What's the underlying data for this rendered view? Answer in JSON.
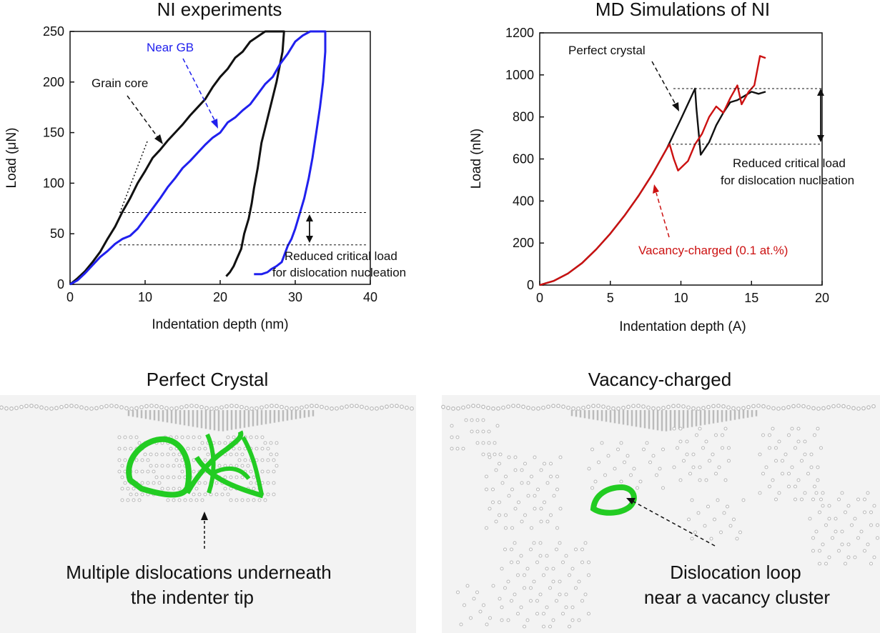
{
  "chart_data": [
    {
      "type": "line",
      "title": "NI experiments",
      "xlabel": "Indentation  depth  (nm)",
      "ylabel": "Load  (μN)",
      "xlim": [
        0,
        40
      ],
      "ylim": [
        0,
        250
      ],
      "xticks": [
        0,
        10,
        20,
        30,
        40
      ],
      "yticks": [
        0,
        50,
        100,
        150,
        200,
        250
      ],
      "series": [
        {
          "name": "Grain core",
          "color": "#111111",
          "x": [
            0,
            1,
            2,
            3,
            4,
            5,
            6,
            7,
            8,
            9,
            10,
            11,
            12,
            13,
            14,
            15,
            16,
            17,
            18,
            19,
            20,
            21,
            22,
            23,
            24,
            25,
            26,
            27,
            28,
            28.5,
            28.3,
            27.5,
            26.5,
            25.5,
            25,
            24.5,
            24.2,
            23.8,
            23.2,
            22.8,
            22.2,
            21.8,
            21.3,
            20.8
          ],
          "y": [
            0,
            6,
            13,
            22,
            32,
            45,
            57,
            72,
            85,
            100,
            112,
            125,
            133,
            142,
            150,
            158,
            167,
            175,
            183,
            195,
            205,
            213,
            224,
            230,
            240,
            245,
            250,
            250,
            250,
            250,
            230,
            200,
            170,
            140,
            115,
            95,
            80,
            65,
            50,
            35,
            25,
            18,
            12,
            8
          ]
        },
        {
          "name": "Near GB",
          "color": "#2020ee",
          "x": [
            0,
            1,
            2,
            3,
            4,
            5,
            6,
            7,
            8,
            9,
            10,
            11,
            12,
            13,
            14,
            15,
            16,
            17,
            18,
            19,
            20,
            21,
            22,
            23,
            24,
            25,
            26,
            27,
            28,
            29,
            30,
            31,
            32,
            33,
            34,
            34,
            33.7,
            33.3,
            32.8,
            32.3,
            31.8,
            31.2,
            30.6,
            30.0,
            29.5,
            29.0,
            28.6,
            28.2,
            27.5,
            26.8,
            26.3,
            25.5,
            24.5
          ],
          "y": [
            0,
            4,
            11,
            19,
            27,
            33,
            40,
            45,
            48,
            55,
            65,
            75,
            85,
            96,
            105,
            115,
            122,
            130,
            138,
            145,
            150,
            160,
            165,
            172,
            178,
            188,
            198,
            205,
            218,
            228,
            240,
            246,
            250,
            250,
            250,
            230,
            200,
            175,
            150,
            125,
            105,
            85,
            70,
            55,
            45,
            38,
            30,
            22,
            18,
            15,
            12,
            10,
            10
          ]
        }
      ],
      "annotations": {
        "grain_core": "Grain core",
        "near_gb": "Near GB",
        "reduced_line1": "Reduced critical load",
        "reduced_line2": "for dislocation nucleation",
        "levels": [
          71,
          39
        ]
      }
    },
    {
      "type": "line",
      "title": "MD Simulations of NI",
      "xlabel": "Indentation  depth  (A)",
      "ylabel": "Load  (nN)",
      "xlim": [
        0,
        20
      ],
      "ylim": [
        0,
        1200
      ],
      "xticks": [
        0,
        5,
        10,
        15,
        20
      ],
      "yticks": [
        0,
        200,
        400,
        600,
        800,
        1000,
        1200
      ],
      "series": [
        {
          "name": "Perfect crystal",
          "color": "#111111",
          "x": [
            0,
            1,
            2,
            3,
            4,
            5,
            6,
            7,
            8,
            9,
            10,
            11,
            11.1,
            11.4,
            12,
            12.5,
            13,
            13.5,
            14,
            14.5,
            15,
            15.5,
            16
          ],
          "y": [
            0,
            20,
            55,
            105,
            170,
            245,
            330,
            425,
            530,
            650,
            790,
            935,
            840,
            620,
            680,
            760,
            820,
            870,
            880,
            900,
            920,
            910,
            920
          ]
        },
        {
          "name": "Vacancy-charged (0.1 at.%)",
          "color": "#cc1111",
          "x": [
            0,
            1,
            2,
            3,
            4,
            5,
            6,
            7,
            8,
            9,
            9.2,
            9.5,
            9.8,
            10.5,
            11,
            11.5,
            12,
            12.5,
            13,
            13.5,
            14,
            14.3,
            14.8,
            15.2,
            15.6,
            16
          ],
          "y": [
            0,
            20,
            55,
            105,
            170,
            245,
            330,
            425,
            530,
            650,
            670,
            600,
            545,
            590,
            670,
            720,
            800,
            850,
            820,
            890,
            950,
            860,
            920,
            950,
            1090,
            1080
          ]
        }
      ],
      "annotations": {
        "perfect": "Perfect crystal",
        "vacancy": "Vacancy-charged (0.1 at.%)",
        "reduced_line1": "Reduced critical load",
        "reduced_line2": "for dislocation nucleation",
        "levels": [
          935,
          670
        ]
      }
    }
  ],
  "panels": {
    "left_title": "Perfect Crystal",
    "right_title": "Vacancy-charged",
    "left_caption_line1": "Multiple dislocations underneath",
    "left_caption_line2": "the indenter tip",
    "right_caption_line1": "Dislocation loop",
    "right_caption_line2": "near a vacancy cluster",
    "loop_color": "#22cc22",
    "atom_color": "#b8b8b8"
  }
}
